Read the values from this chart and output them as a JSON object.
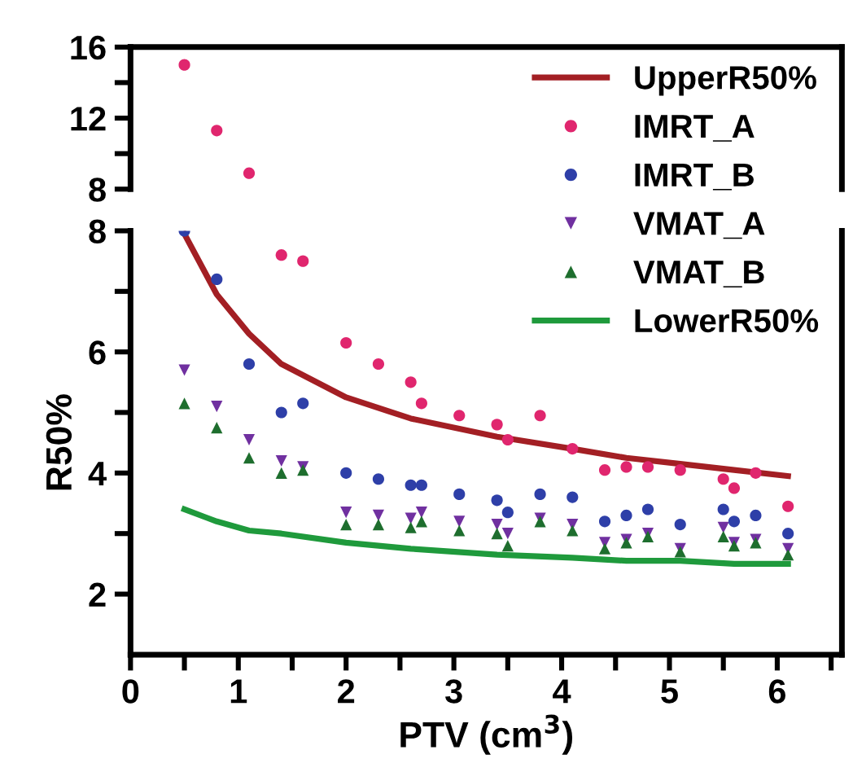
{
  "chart_data": [
    {
      "type": "scatter",
      "ylim": [
        8,
        16
      ],
      "yticks": [
        8,
        {
          "value": 10,
          "label": null
        },
        12,
        {
          "value": 14,
          "label": null
        },
        16
      ],
      "xlim": [
        0,
        6.6
      ],
      "tick_labels": "y",
      "grid": false,
      "x": [
        0.5,
        0.8,
        1.1
      ],
      "series": [
        {
          "type": "scatter",
          "color": "#e0266e",
          "marker": "circle",
          "values": [
            15,
            11.3,
            8.9
          ]
        }
      ]
    },
    {
      "type": "scatter",
      "ylim": [
        1,
        8
      ],
      "yticks": [
        2,
        {
          "value": 3,
          "label": null
        },
        4,
        {
          "value": 5,
          "label": null
        },
        6,
        {
          "value": 7,
          "label": null
        },
        8
      ],
      "xlim": [
        0,
        6.6
      ],
      "xticks": [
        0,
        {
          "value": 0.5,
          "label": null
        },
        1,
        {
          "value": 1.5,
          "label": null
        },
        2,
        {
          "value": 2.5,
          "label": null
        },
        3,
        {
          "value": 3.5,
          "label": null
        },
        4,
        {
          "value": 4.5,
          "label": null
        },
        5,
        {
          "value": 5.5,
          "label": null
        },
        6,
        {
          "value": 6.5,
          "label": null
        }
      ],
      "xlabel": "PTV (cm$^{3}$)",
      "ylabel": "R50%",
      "grid": false,
      "legend": "top right",
      "x": [
        0.5,
        0.8,
        1.1,
        1.4,
        1.6,
        2.0,
        2.3,
        2.6,
        2.7,
        3.05,
        3.4,
        3.5,
        3.8,
        4.1,
        4.4,
        4.6,
        4.8,
        5.1,
        5.5,
        5.6,
        5.8,
        6.1
      ],
      "series": [
        {
          "type": "line",
          "name": "UpperR50%",
          "color": "#a31f24",
          "marker": "none",
          "line_style": "solid",
          "x": [
            0.5,
            0.8,
            1.1,
            1.4,
            2.0,
            2.6,
            3.4,
            4.1,
            4.6,
            5.1,
            5.6,
            6.1
          ],
          "values": [
            7.95,
            6.95,
            6.3,
            5.8,
            5.25,
            4.9,
            4.6,
            4.4,
            4.25,
            4.15,
            4.05,
            3.95
          ]
        },
        {
          "type": "scatter",
          "name": "IMRT_A",
          "color": "#e0266e",
          "marker": "circle",
          "values": [
            null,
            null,
            null,
            7.6,
            7.5,
            6.15,
            5.8,
            5.5,
            5.15,
            4.95,
            4.8,
            4.55,
            4.95,
            4.4,
            4.05,
            4.1,
            4.1,
            4.05,
            3.9,
            3.75,
            4.0,
            3.45
          ]
        },
        {
          "type": "scatter",
          "name": "IMRT_B",
          "color": "#2e3fa8",
          "marker": "circle",
          "values": [
            8.0,
            7.2,
            5.8,
            5.0,
            5.15,
            4.0,
            3.9,
            3.8,
            3.8,
            3.65,
            3.55,
            3.35,
            3.65,
            3.6,
            3.2,
            3.3,
            3.4,
            3.15,
            3.4,
            3.2,
            3.3,
            3.0
          ]
        },
        {
          "type": "scatter",
          "name": "VMAT_A",
          "color": "#7030a0",
          "marker": "triangle_down",
          "values": [
            5.7,
            5.1,
            4.55,
            4.2,
            4.1,
            3.35,
            3.3,
            3.25,
            3.35,
            3.2,
            3.15,
            3.0,
            3.25,
            3.15,
            2.85,
            2.9,
            3.0,
            2.75,
            3.1,
            2.85,
            2.9,
            2.75
          ]
        },
        {
          "type": "scatter",
          "name": "VMAT_B",
          "color": "#1e6e2e",
          "marker": "triangle",
          "values": [
            5.15,
            4.75,
            4.25,
            4.0,
            4.05,
            3.15,
            3.15,
            3.1,
            3.2,
            3.05,
            3.0,
            2.8,
            3.2,
            3.05,
            2.75,
            2.85,
            2.95,
            2.7,
            2.95,
            2.8,
            2.85,
            2.65
          ]
        },
        {
          "type": "line",
          "name": "LowerR50%",
          "color": "#1f9a3c",
          "marker": "none",
          "line_style": "solid",
          "x": [
            0.5,
            0.8,
            1.1,
            1.4,
            2.0,
            2.6,
            3.4,
            4.1,
            4.6,
            5.1,
            5.6,
            6.1
          ],
          "values": [
            3.4,
            3.2,
            3.05,
            3.0,
            2.85,
            2.75,
            2.65,
            2.6,
            2.55,
            2.55,
            2.5,
            2.5
          ]
        }
      ]
    }
  ]
}
